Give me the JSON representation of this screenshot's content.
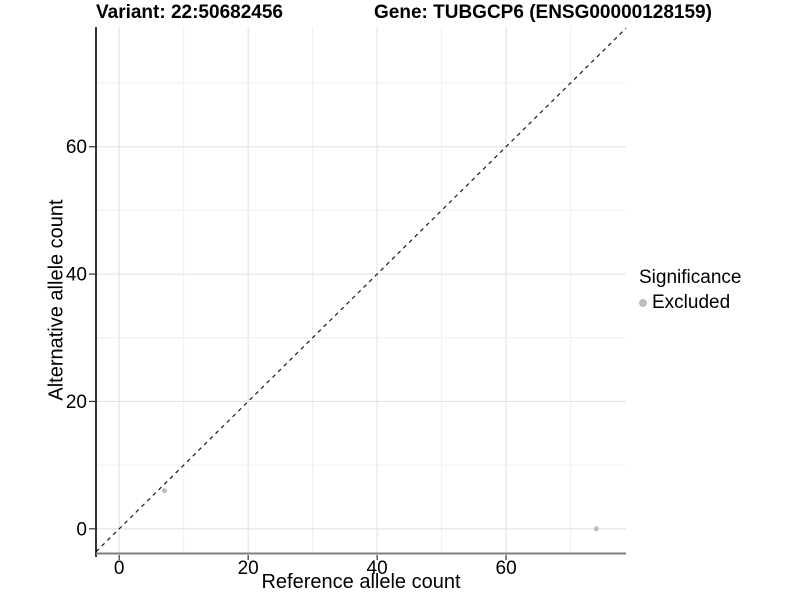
{
  "chart_data": {
    "type": "scatter",
    "title_left": "Variant: 22:50682456",
    "title_right": "Gene: TUBGCP6 (ENSG00000128159)",
    "xlabel": "Reference allele count",
    "ylabel": "Alternative allele count",
    "xlim": [
      -3.6,
      78.6
    ],
    "ylim": [
      -3.8,
      78.8
    ],
    "x_ticks": [
      0,
      20,
      40,
      60
    ],
    "y_ticks": [
      0,
      20,
      40,
      60
    ],
    "x_minor_ticks": [
      10,
      30,
      50,
      70
    ],
    "y_minor_ticks": [
      10,
      30,
      50,
      70
    ],
    "grid": "major+minor",
    "identity_line": {
      "type": "abline",
      "slope": 1,
      "intercept": 0,
      "style": "dashed",
      "color": "#1a1a1a"
    },
    "series": [
      {
        "name": "Excluded",
        "color": "#bdbdbd",
        "marker": "circle",
        "points": [
          {
            "x": 7,
            "y": 6
          },
          {
            "x": 74,
            "y": 0
          }
        ]
      }
    ],
    "legend": {
      "title": "Significance",
      "position": "right",
      "entries": [
        {
          "label": "Excluded",
          "color": "#bdbdbd"
        }
      ]
    },
    "style": {
      "background": "#ffffff",
      "grid_major_color": "#e4e4e4",
      "grid_minor_color": "#efefef",
      "x_axis_line_color": "#7f7f7f",
      "y_axis_line_color": "#000000",
      "tick_mark_color": "#333333",
      "point_radius": 2.5
    }
  }
}
